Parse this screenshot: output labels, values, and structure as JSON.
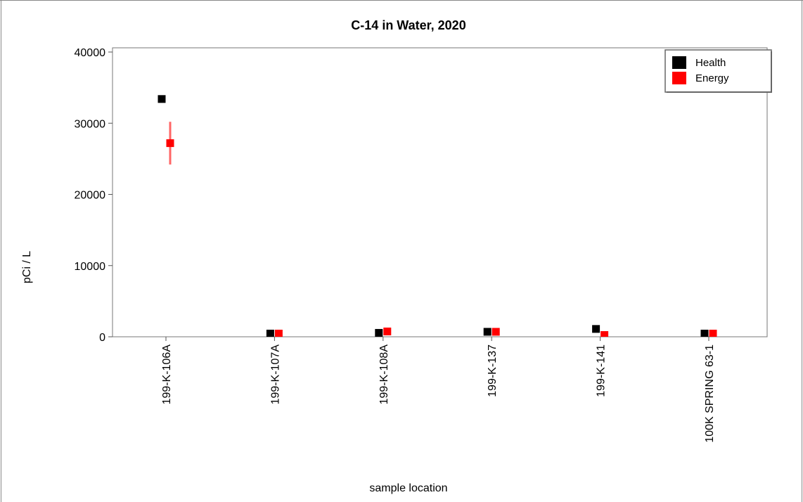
{
  "chart_data": {
    "type": "scatter",
    "title": "C-14 in Water, 2020",
    "xlabel": "sample location",
    "ylabel": "pCi / L",
    "ylim": [
      0,
      40000
    ],
    "yticks": [
      0,
      10000,
      20000,
      30000,
      40000
    ],
    "categories": [
      "199-K-106A",
      "199-K-107A",
      "199-K-108A",
      "199-K-137",
      "199-K-141",
      "100K SPRING 63-1"
    ],
    "legend_position": "top-right",
    "grid": false,
    "series": [
      {
        "name": "Health",
        "color": "#000000",
        "values": [
          33400,
          450,
          550,
          700,
          1100,
          450
        ],
        "errors": [
          0,
          0,
          0,
          0,
          0,
          0
        ]
      },
      {
        "name": "Energy",
        "color": "#ff0000",
        "error_color": "#ff6666",
        "values": [
          27200,
          450,
          750,
          700,
          250,
          450
        ],
        "errors": [
          3000,
          0,
          0,
          0,
          0,
          0
        ]
      }
    ]
  }
}
